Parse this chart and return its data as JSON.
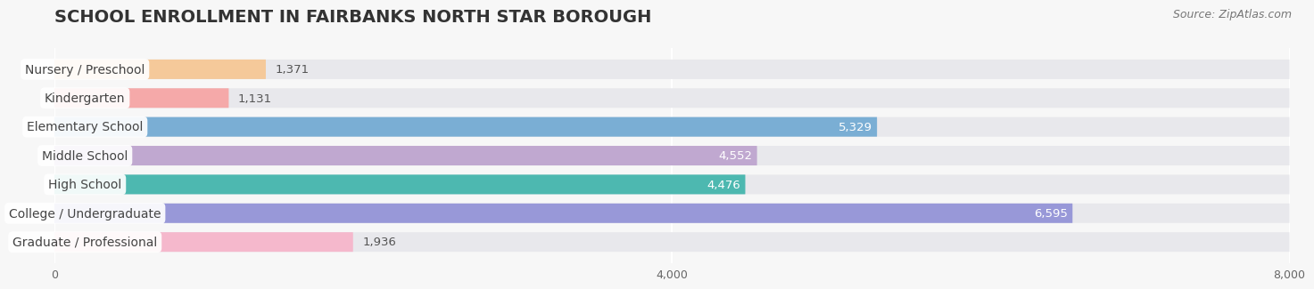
{
  "title": "School Enrollment in Fairbanks North Star Borough",
  "title_display": "SCHOOL ENROLLMENT IN FAIRBANKS NORTH STAR BOROUGH",
  "source": "Source: ZipAtlas.com",
  "categories": [
    "Nursery / Preschool",
    "Kindergarten",
    "Elementary School",
    "Middle School",
    "High School",
    "College / Undergraduate",
    "Graduate / Professional"
  ],
  "values": [
    1371,
    1131,
    5329,
    4552,
    4476,
    6595,
    1936
  ],
  "bar_colors": [
    "#f5c99a",
    "#f5a9a9",
    "#7aaed4",
    "#c0a8d0",
    "#4db8b0",
    "#9898d8",
    "#f5b8cc"
  ],
  "xlim": [
    0,
    8000
  ],
  "xticks": [
    0,
    4000,
    8000
  ],
  "background_color": "#f7f7f7",
  "bar_bg_color": "#e8e8ec",
  "title_fontsize": 14,
  "source_fontsize": 9,
  "label_fontsize": 10,
  "value_fontsize": 9.5
}
